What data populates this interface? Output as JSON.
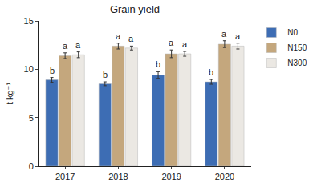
{
  "chart_data": {
    "type": "bar",
    "title": "Grain yield",
    "y_label": "t kg⁻¹",
    "categories": [
      "2017",
      "2018",
      "2019",
      "2020"
    ],
    "series": [
      {
        "name": "N0",
        "color": "#3d6db4",
        "values": [
          8.9,
          8.5,
          9.4,
          8.7
        ],
        "errors": [
          0.25,
          0.2,
          0.35,
          0.25
        ],
        "letters": [
          "b",
          "b",
          "b",
          "b"
        ]
      },
      {
        "name": "N150",
        "color": "#c4a77d",
        "values": [
          11.4,
          12.4,
          11.6,
          12.6
        ],
        "errors": [
          0.3,
          0.3,
          0.4,
          0.35
        ],
        "letters": [
          "a",
          "a",
          "a",
          "a"
        ]
      },
      {
        "name": "N300",
        "color": "#ebe8e3",
        "values": [
          11.5,
          12.2,
          11.6,
          12.4
        ],
        "errors": [
          0.3,
          0.2,
          0.25,
          0.3
        ],
        "letters": [
          "a",
          "a",
          "a",
          "a"
        ]
      }
    ],
    "ylim": [
      0,
      15
    ],
    "yticks": [
      0,
      5,
      10,
      15
    ],
    "grid": false,
    "legend": "right"
  }
}
